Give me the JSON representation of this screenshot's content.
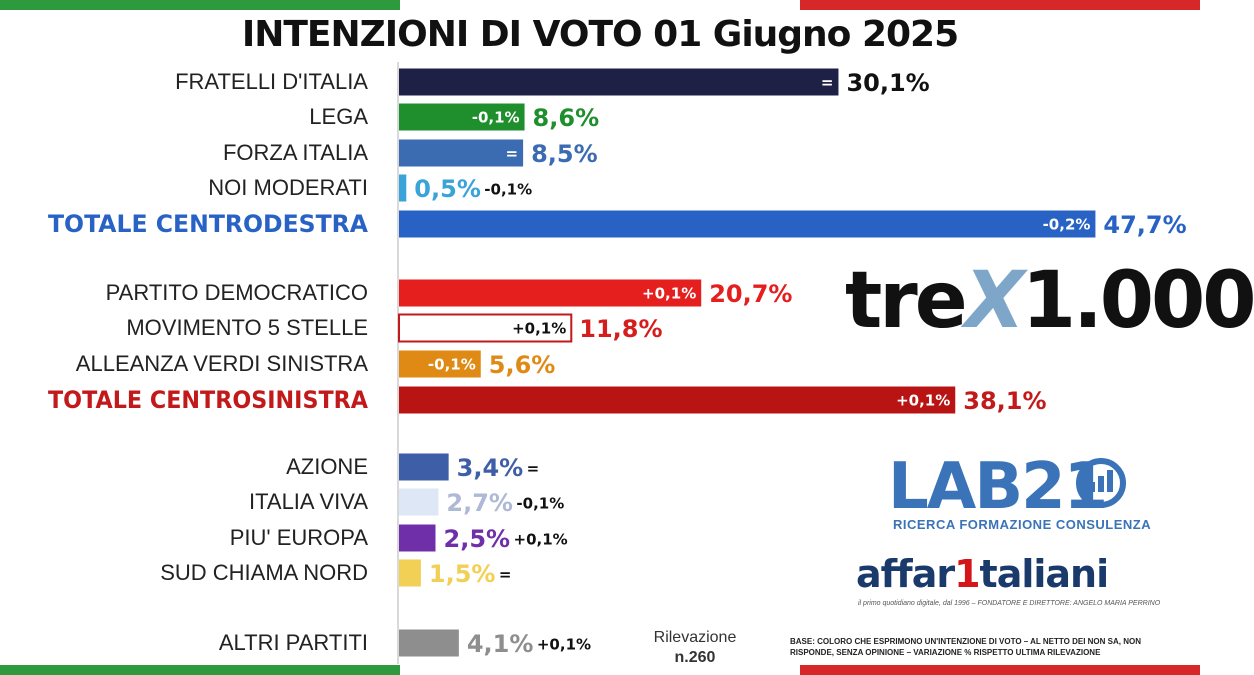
{
  "title": "INTENZIONI DI VOTO 01 Giugno 2025",
  "colors": {
    "flag_green": "#2e9a3e",
    "flag_white": "#ffffff",
    "flag_red": "#d62828"
  },
  "chart_data": {
    "type": "bar",
    "orientation": "horizontal",
    "unit": "%",
    "rows": [
      {
        "label": "FRATELLI D'ITALIA",
        "value": 30.1,
        "value_label": "30,1%",
        "change": "=",
        "change_inside": true,
        "bar_color": "#1e2145",
        "value_color": "#111111",
        "label_style": "normal"
      },
      {
        "label": "LEGA",
        "value": 8.6,
        "value_label": "8,6%",
        "change": "-0,1%",
        "change_inside": true,
        "bar_color": "#1f8f2d",
        "value_color": "#1f8f2d",
        "label_style": "normal"
      },
      {
        "label": "FORZA ITALIA",
        "value": 8.5,
        "value_label": "8,5%",
        "change": "=",
        "change_inside": true,
        "bar_color": "#3b6bb0",
        "value_color": "#3b6bb0",
        "label_style": "normal"
      },
      {
        "label": "NOI MODERATI",
        "value": 0.5,
        "value_label": "0,5%",
        "change": "-0,1%",
        "change_inside": false,
        "bar_color": "#3aa3d8",
        "value_color": "#3aa3d8",
        "label_style": "normal"
      },
      {
        "label": "TOTALE CENTRODESTRA",
        "value": 47.7,
        "value_label": "47,7%",
        "change": "-0,2%",
        "change_inside": true,
        "bar_color": "#2762c4",
        "value_color": "#2762c4",
        "label_style": "total-right"
      },
      {
        "label": "PARTITO DEMOCRATICO",
        "value": 20.7,
        "value_label": "20,7%",
        "change": "+0,1%",
        "change_inside": true,
        "bar_color": "#e51e1e",
        "value_color": "#e51e1e",
        "label_style": "normal"
      },
      {
        "label": "MOVIMENTO 5 STELLE",
        "value": 11.8,
        "value_label": "11,8%",
        "change": "+0,1%",
        "change_inside": true,
        "bar_color": "#ffffff",
        "bar_stroke": "#c21a1a",
        "value_color": "#d61d1d",
        "label_style": "normal"
      },
      {
        "label": "ALLEANZA VERDI SINISTRA",
        "value": 5.6,
        "value_label": "5,6%",
        "change": "-0,1%",
        "change_inside": true,
        "bar_color": "#e08a16",
        "value_color": "#e08a16",
        "label_style": "normal"
      },
      {
        "label": "TOTALE CENTROSINISTRA",
        "value": 38.1,
        "value_label": "38,1%",
        "change": "+0,1%",
        "change_inside": true,
        "bar_color": "#b81414",
        "value_color": "#c21a1a",
        "label_style": "total-left"
      },
      {
        "label": "AZIONE",
        "value": 3.4,
        "value_label": "3,4%",
        "change": "=",
        "change_inside": false,
        "bar_color": "#3f5ea8",
        "value_color": "#3f5ea8",
        "label_style": "normal"
      },
      {
        "label": "ITALIA VIVA",
        "value": 2.7,
        "value_label": "2,7%",
        "change": "-0,1%",
        "change_inside": false,
        "bar_color": "#dde7f6",
        "value_color": "#aeb9d6",
        "label_style": "normal"
      },
      {
        "label": "PIU' EUROPA",
        "value": 2.5,
        "value_label": "2,5%",
        "change": "+0,1%",
        "change_inside": false,
        "bar_color": "#6f2fa8",
        "value_color": "#6f2fa8",
        "label_style": "normal"
      },
      {
        "label": "SUD CHIAMA NORD",
        "value": 1.5,
        "value_label": "1,5%",
        "change": "=",
        "change_inside": false,
        "bar_color": "#f2cf55",
        "value_color": "#f2cf55",
        "label_style": "normal"
      },
      {
        "label": "ALTRI PARTITI",
        "value": 4.1,
        "value_label": "4,1%",
        "change": "+0,1%",
        "change_inside": false,
        "bar_color": "#8e8e8e",
        "value_color": "#8e8e8e",
        "label_style": "normal"
      }
    ]
  },
  "logos": {
    "trex_left": "tre",
    "trex_x": "X",
    "trex_right": "1.000",
    "lab21": "LAB21",
    "lab21_sub": "RICERCA FORMAZIONE CONSULENZA",
    "affari_left": "affar",
    "affari_one": "1",
    "affari_right": "taliani",
    "affari_sub": "il primo quotidiano digitale, dal 1996 – FONDATORE E DIRETTORE: ANGELO MARIA PERRINO"
  },
  "sample": {
    "line1": "Rilevazione",
    "line2": "n.260"
  },
  "base_note": "BASE: COLORO CHE ESPRIMONO UN'INTENZIONE DI VOTO – AL NETTO DEI NON SA, NON RISPONDE, SENZA OPINIONE – VARIAZIONE % RISPETTO ULTIMA RILEVAZIONE"
}
